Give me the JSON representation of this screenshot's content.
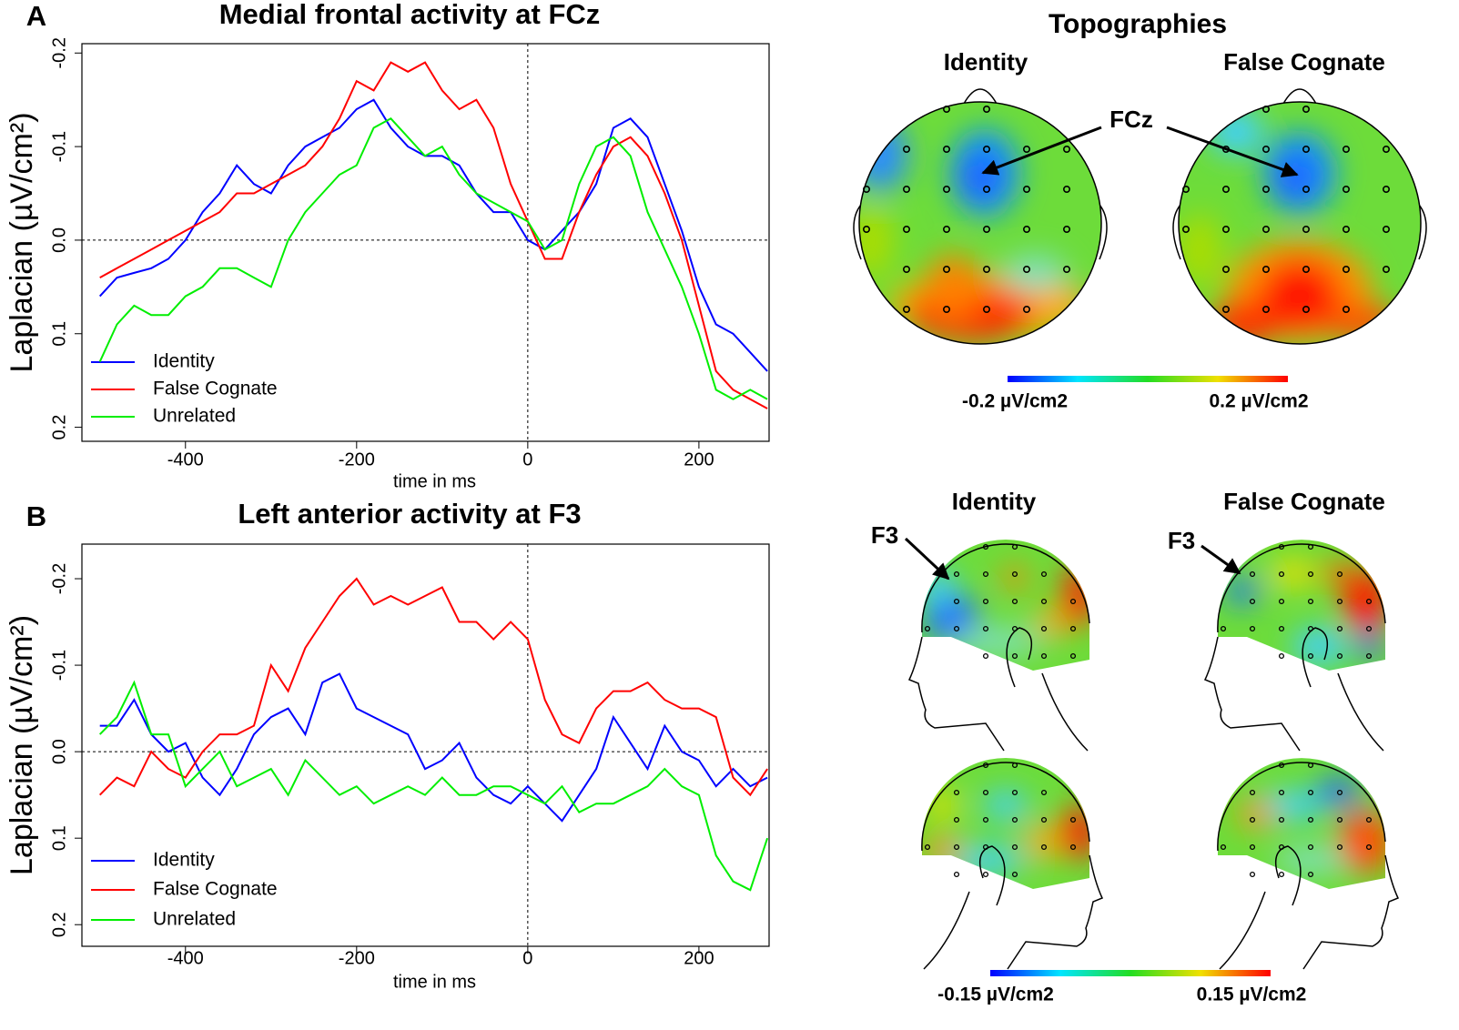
{
  "chart_data": [
    {
      "type": "line",
      "panel_label": "A",
      "title": "Medial frontal activity at FCz",
      "x_label": "time in ms",
      "y_label": "Laplacian (µV/cm²)",
      "x": [
        -500,
        -480,
        -460,
        -440,
        -420,
        -400,
        -380,
        -360,
        -340,
        -320,
        -300,
        -280,
        -260,
        -240,
        -220,
        -200,
        -180,
        -160,
        -140,
        -120,
        -100,
        -80,
        -60,
        -40,
        -20,
        0,
        20,
        40,
        60,
        80,
        100,
        120,
        140,
        160,
        180,
        200,
        220,
        240,
        260,
        280
      ],
      "series": [
        {
          "name": "Identity",
          "color": "#0000ff",
          "values": [
            0.06,
            0.04,
            0.035,
            0.03,
            0.02,
            0.0,
            -0.03,
            -0.05,
            -0.08,
            -0.06,
            -0.05,
            -0.08,
            -0.1,
            -0.11,
            -0.12,
            -0.14,
            -0.15,
            -0.12,
            -0.1,
            -0.09,
            -0.09,
            -0.08,
            -0.05,
            -0.03,
            -0.03,
            0.0,
            0.01,
            -0.01,
            -0.03,
            -0.06,
            -0.12,
            -0.13,
            -0.11,
            -0.06,
            -0.01,
            0.05,
            0.09,
            0.1,
            0.12,
            0.14
          ]
        },
        {
          "name": "False Cognate",
          "color": "#ff0000",
          "values": [
            0.04,
            0.03,
            0.02,
            0.01,
            0.0,
            -0.01,
            -0.02,
            -0.03,
            -0.05,
            -0.05,
            -0.06,
            -0.07,
            -0.08,
            -0.1,
            -0.13,
            -0.17,
            -0.16,
            -0.19,
            -0.18,
            -0.19,
            -0.16,
            -0.14,
            -0.15,
            -0.12,
            -0.06,
            -0.02,
            0.02,
            0.02,
            -0.03,
            -0.07,
            -0.1,
            -0.11,
            -0.09,
            -0.05,
            0.0,
            0.07,
            0.14,
            0.16,
            0.17,
            0.18
          ]
        },
        {
          "name": "Unrelated",
          "color": "#00ee00",
          "values": [
            0.13,
            0.09,
            0.07,
            0.08,
            0.08,
            0.06,
            0.05,
            0.03,
            0.03,
            0.04,
            0.05,
            0.0,
            -0.03,
            -0.05,
            -0.07,
            -0.08,
            -0.12,
            -0.13,
            -0.11,
            -0.09,
            -0.1,
            -0.07,
            -0.05,
            -0.04,
            -0.03,
            -0.02,
            0.01,
            0.0,
            -0.06,
            -0.1,
            -0.11,
            -0.09,
            -0.03,
            0.01,
            0.05,
            0.1,
            0.16,
            0.17,
            0.16,
            0.17
          ]
        }
      ],
      "xlim": [
        -521,
        282
      ],
      "xticks": [
        -400,
        -200,
        0,
        200
      ],
      "ylim": [
        0.215,
        -0.21
      ],
      "yticks": [
        -0.2,
        -0.1,
        {
          "value": 0,
          "label": "0.0"
        },
        0.1,
        0.2
      ]
    },
    {
      "type": "line",
      "panel_label": "B",
      "title": "Left anterior activity at F3",
      "x_label": "time in ms",
      "y_label": "Laplacian (µV/cm²)",
      "x": [
        -500,
        -480,
        -460,
        -440,
        -420,
        -400,
        -380,
        -360,
        -340,
        -320,
        -300,
        -280,
        -260,
        -240,
        -220,
        -200,
        -180,
        -160,
        -140,
        -120,
        -100,
        -80,
        -60,
        -40,
        -20,
        0,
        20,
        40,
        60,
        80,
        100,
        120,
        140,
        160,
        180,
        200,
        220,
        240,
        260,
        280
      ],
      "series": [
        {
          "name": "Identity",
          "color": "#0000ff",
          "values": [
            -0.03,
            -0.03,
            -0.06,
            -0.02,
            0.0,
            -0.01,
            0.03,
            0.05,
            0.02,
            -0.02,
            -0.04,
            -0.05,
            -0.02,
            -0.08,
            -0.09,
            -0.05,
            -0.04,
            -0.03,
            -0.02,
            0.02,
            0.01,
            -0.01,
            0.03,
            0.05,
            0.06,
            0.04,
            0.06,
            0.08,
            0.05,
            0.02,
            -0.04,
            -0.01,
            0.02,
            -0.03,
            0.0,
            0.01,
            0.04,
            0.02,
            0.04,
            0.03
          ]
        },
        {
          "name": "False Cognate",
          "color": "#ff0000",
          "values": [
            0.05,
            0.03,
            0.04,
            0.0,
            0.02,
            0.03,
            0.0,
            -0.02,
            -0.02,
            -0.03,
            -0.1,
            -0.07,
            -0.12,
            -0.15,
            -0.18,
            -0.2,
            -0.17,
            -0.18,
            -0.17,
            -0.18,
            -0.19,
            -0.15,
            -0.15,
            -0.13,
            -0.15,
            -0.13,
            -0.06,
            -0.02,
            -0.01,
            -0.05,
            -0.07,
            -0.07,
            -0.08,
            -0.06,
            -0.05,
            -0.05,
            -0.04,
            0.03,
            0.05,
            0.02
          ]
        },
        {
          "name": "Unrelated",
          "color": "#00ee00",
          "values": [
            -0.02,
            -0.04,
            -0.08,
            -0.02,
            -0.02,
            0.04,
            0.02,
            0.0,
            0.04,
            0.03,
            0.02,
            0.05,
            0.01,
            0.03,
            0.05,
            0.04,
            0.06,
            0.05,
            0.04,
            0.05,
            0.03,
            0.05,
            0.05,
            0.04,
            0.04,
            0.05,
            0.06,
            0.04,
            0.07,
            0.06,
            0.06,
            0.05,
            0.04,
            0.02,
            0.04,
            0.05,
            0.12,
            0.15,
            0.16,
            0.1
          ]
        }
      ],
      "xlim": [
        -521,
        282
      ],
      "xticks": [
        -400,
        -200,
        0,
        200
      ],
      "ylim": [
        0.225,
        -0.24
      ],
      "yticks": [
        -0.2,
        -0.1,
        {
          "value": 0,
          "label": "0.0"
        },
        0.1,
        0.2
      ]
    }
  ],
  "topographies": {
    "title": "Topographies",
    "panel_a": {
      "conditions": [
        "Identity",
        "False Cognate"
      ],
      "electrode": "FCz",
      "colorbar": {
        "min_label": "-0.2 µV/cm2",
        "max_label": "0.2 µV/cm2"
      }
    },
    "panel_b": {
      "conditions": [
        "Identity",
        "False Cognate"
      ],
      "electrode": "F3",
      "colorbar": {
        "min_label": "-0.15 µV/cm2",
        "max_label": "0.15 µV/cm2"
      }
    }
  }
}
